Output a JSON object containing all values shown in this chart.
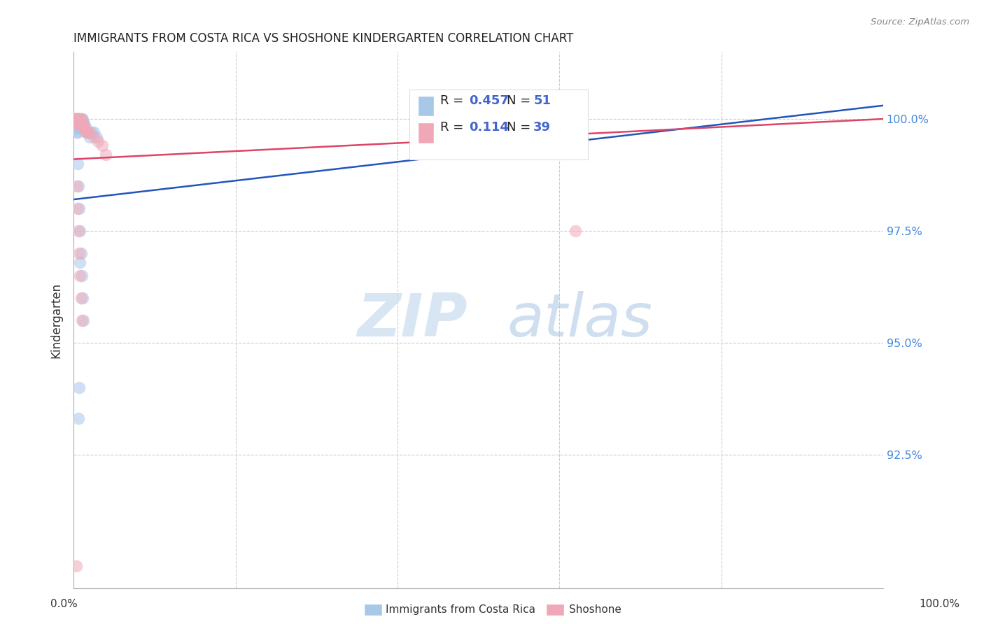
{
  "title": "IMMIGRANTS FROM COSTA RICA VS SHOSHONE KINDERGARTEN CORRELATION CHART",
  "source": "Source: ZipAtlas.com",
  "ylabel": "Kindergarten",
  "ytick_labels": [
    "100.0%",
    "97.5%",
    "95.0%",
    "92.5%"
  ],
  "ytick_values": [
    1.0,
    0.975,
    0.95,
    0.925
  ],
  "xlim": [
    0.0,
    1.0
  ],
  "ylim": [
    0.895,
    1.015
  ],
  "blue_color": "#a8c8e8",
  "pink_color": "#f0a8b8",
  "blue_line_color": "#2255bb",
  "pink_line_color": "#dd4466",
  "legend_r1_val": "0.457",
  "legend_n1_val": "51",
  "legend_r2_val": "0.114",
  "legend_n2_val": "39",
  "watermark_zip": "ZIP",
  "watermark_atlas": "atlas",
  "blue_scatter_x": [
    0.001,
    0.002,
    0.002,
    0.003,
    0.003,
    0.003,
    0.004,
    0.004,
    0.004,
    0.004,
    0.005,
    0.005,
    0.005,
    0.005,
    0.006,
    0.006,
    0.006,
    0.007,
    0.007,
    0.007,
    0.008,
    0.008,
    0.008,
    0.009,
    0.009,
    0.01,
    0.01,
    0.011,
    0.011,
    0.012,
    0.012,
    0.013,
    0.014,
    0.015,
    0.016,
    0.018,
    0.02,
    0.022,
    0.025,
    0.028,
    0.005,
    0.006,
    0.007,
    0.008,
    0.009,
    0.01,
    0.011,
    0.012,
    0.007,
    0.006,
    0.008
  ],
  "blue_scatter_y": [
    1.0,
    1.0,
    0.999,
    1.0,
    0.999,
    0.998,
    1.0,
    0.999,
    0.998,
    0.997,
    1.0,
    0.999,
    0.998,
    0.997,
    1.0,
    0.999,
    0.998,
    1.0,
    0.999,
    0.998,
    1.0,
    0.999,
    0.998,
    1.0,
    0.999,
    1.0,
    0.999,
    1.0,
    0.999,
    0.999,
    0.998,
    0.999,
    0.998,
    0.998,
    0.997,
    0.997,
    0.996,
    0.997,
    0.997,
    0.996,
    0.99,
    0.985,
    0.98,
    0.975,
    0.97,
    0.965,
    0.96,
    0.955,
    0.94,
    0.933,
    0.968
  ],
  "pink_scatter_x": [
    0.001,
    0.002,
    0.002,
    0.003,
    0.003,
    0.004,
    0.004,
    0.005,
    0.005,
    0.006,
    0.006,
    0.007,
    0.007,
    0.008,
    0.008,
    0.009,
    0.009,
    0.01,
    0.011,
    0.012,
    0.013,
    0.014,
    0.015,
    0.016,
    0.018,
    0.02,
    0.025,
    0.03,
    0.035,
    0.04,
    0.004,
    0.005,
    0.006,
    0.007,
    0.008,
    0.009,
    0.01,
    0.62,
    0.003
  ],
  "pink_scatter_y": [
    1.0,
    1.0,
    0.999,
    1.0,
    0.999,
    1.0,
    0.999,
    1.0,
    0.999,
    1.0,
    0.999,
    1.0,
    0.999,
    1.0,
    0.999,
    1.0,
    0.999,
    0.999,
    0.999,
    0.998,
    0.998,
    0.998,
    0.997,
    0.997,
    0.997,
    0.997,
    0.996,
    0.995,
    0.994,
    0.992,
    0.985,
    0.98,
    0.975,
    0.97,
    0.965,
    0.96,
    0.955,
    0.975,
    0.9
  ],
  "blue_line_x": [
    0.0,
    1.0
  ],
  "blue_line_y": [
    0.982,
    1.003
  ],
  "pink_line_x": [
    0.0,
    1.0
  ],
  "pink_line_y": [
    0.991,
    1.0
  ]
}
